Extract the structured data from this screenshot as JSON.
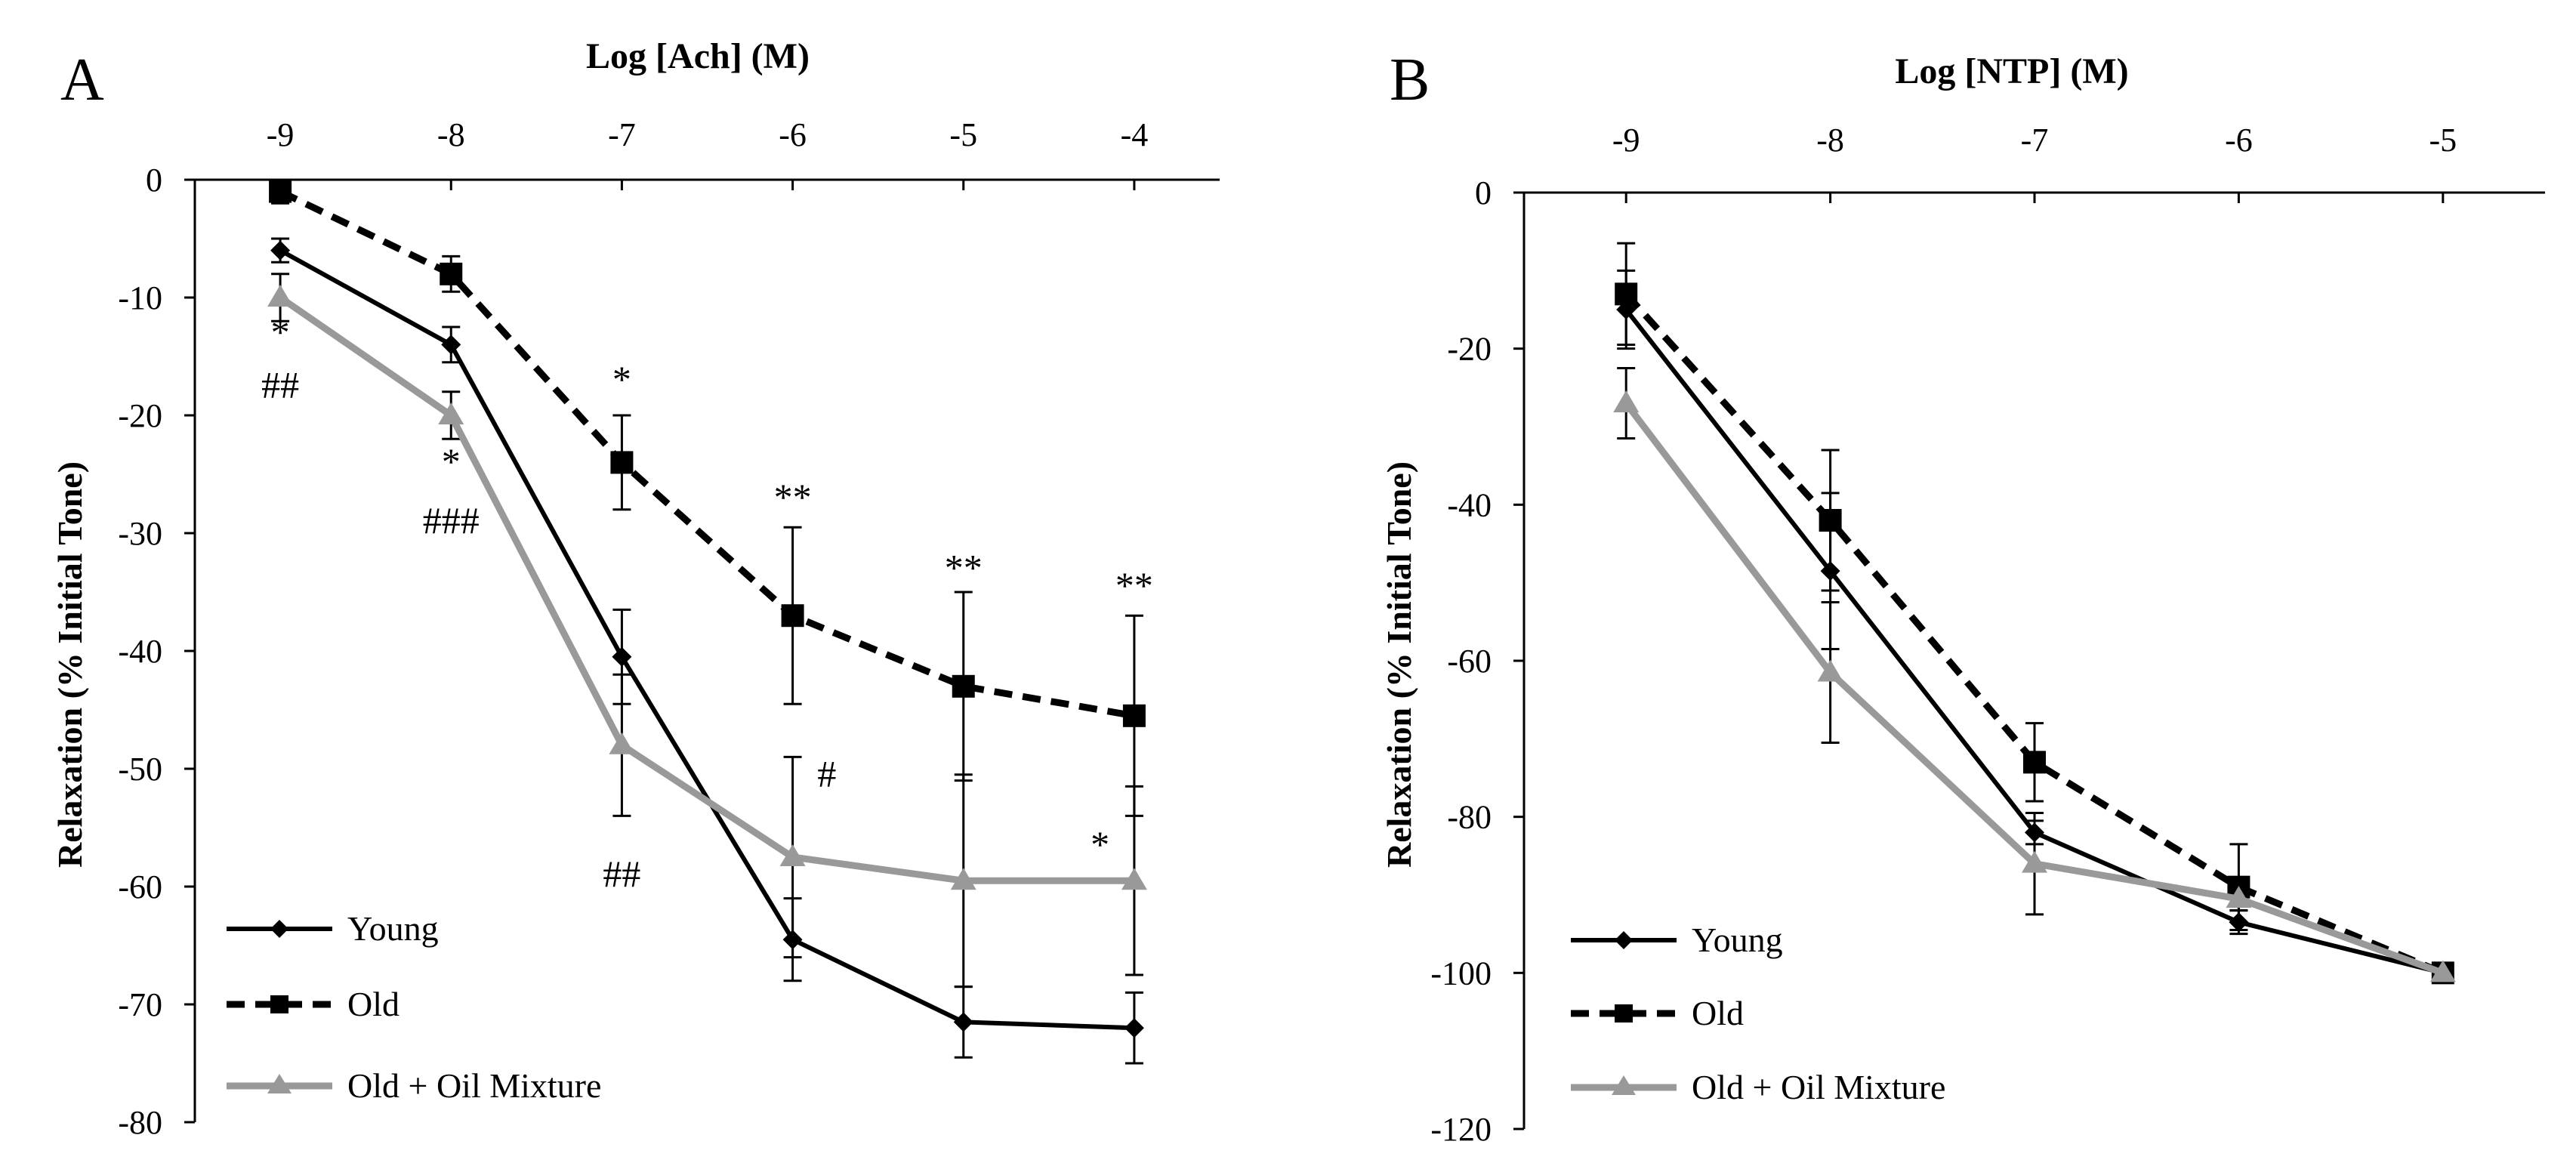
{
  "chart_data": [
    {
      "panel": "A",
      "type": "line",
      "title": "",
      "xlabel": "Log [Ach] (M)",
      "ylabel": "Relaxation (% Initial Tone)",
      "x": [
        -9,
        -8,
        -7,
        -6,
        -5,
        -4
      ],
      "x_tick_labels": [
        "-9",
        "-8",
        "-7",
        "-6",
        "-5",
        "-4"
      ],
      "y_tick_labels": [
        "0",
        "-10",
        "-20",
        "-30",
        "-40",
        "-50",
        "-60",
        "-70",
        "-80"
      ],
      "xlim": [
        -9.5,
        -3.5
      ],
      "ylim": [
        -80,
        0
      ],
      "grid": false,
      "legend_position": "bottom-left",
      "series": [
        {
          "name": "Young",
          "style": "solid",
          "marker": "diamond",
          "color": "#000000",
          "values": [
            -6,
            -14,
            -40.5,
            -64.5,
            -71.5,
            -72
          ],
          "errors": [
            1,
            1.5,
            4,
            3.5,
            3,
            3
          ]
        },
        {
          "name": "Old",
          "style": "dashed",
          "marker": "square",
          "color": "#000000",
          "values": [
            -1,
            -8,
            -24,
            -37,
            -43,
            -45.5
          ],
          "errors": [
            1,
            1.5,
            4,
            7.5,
            8,
            8.5
          ]
        },
        {
          "name": "Old + Oil Mixture",
          "style": "solid",
          "marker": "triangle",
          "color": "#999999",
          "values": [
            -10,
            -20,
            -48,
            -57.5,
            -59.5,
            -59.5
          ],
          "errors": [
            2,
            2,
            6,
            8.5,
            9,
            8
          ]
        }
      ],
      "annotations": [
        {
          "text": "*",
          "x": -9,
          "y": -14
        },
        {
          "text": "##",
          "x": -9,
          "y": -18.5
        },
        {
          "text": "*",
          "x": -8,
          "y": -25
        },
        {
          "text": "###",
          "x": -8,
          "y": -30
        },
        {
          "text": "*",
          "x": -7,
          "y": -18
        },
        {
          "text": "##",
          "x": -7,
          "y": -60
        },
        {
          "text": "**",
          "x": -6,
          "y": -28
        },
        {
          "text": "#",
          "x": -5.8,
          "y": -51.5
        },
        {
          "text": "**",
          "x": -5,
          "y": -34
        },
        {
          "text": "*",
          "x": -4.2,
          "y": -57.5
        },
        {
          "text": "**",
          "x": -4,
          "y": -35.5
        }
      ]
    },
    {
      "panel": "B",
      "type": "line",
      "title": "",
      "xlabel": "Log [NTP] (M)",
      "ylabel": "Relaxation (% Initial Tone)",
      "x": [
        -9,
        -8,
        -7,
        -6,
        -5
      ],
      "x_tick_labels": [
        "-9",
        "-8",
        "-7",
        "-6",
        "-5"
      ],
      "y_tick_labels": [
        "0",
        "-20",
        "-40",
        "-60",
        "-80",
        "-100",
        "-120"
      ],
      "xlim": [
        -9.5,
        -4.5
      ],
      "ylim": [
        -120,
        0
      ],
      "grid": false,
      "legend_position": "bottom-left",
      "series": [
        {
          "name": "Young",
          "style": "solid",
          "marker": "diamond",
          "color": "#000000",
          "values": [
            -15,
            -48.5,
            -82,
            -93.5,
            -100
          ],
          "errors": [
            5,
            10,
            1.5,
            1.5,
            0
          ]
        },
        {
          "name": "Old",
          "style": "dashed",
          "marker": "square",
          "color": "#000000",
          "values": [
            -13,
            -42,
            -73,
            -89,
            -100
          ],
          "errors": [
            6.5,
            9,
            5,
            5.5,
            0
          ]
        },
        {
          "name": "Old + Oil Mixture",
          "style": "solid",
          "marker": "triangle",
          "color": "#999999",
          "values": [
            -27,
            -61.5,
            -86,
            -90.5,
            -100
          ],
          "errors": [
            4.5,
            9,
            6.5,
            1.5,
            0
          ]
        }
      ],
      "annotations": []
    }
  ]
}
